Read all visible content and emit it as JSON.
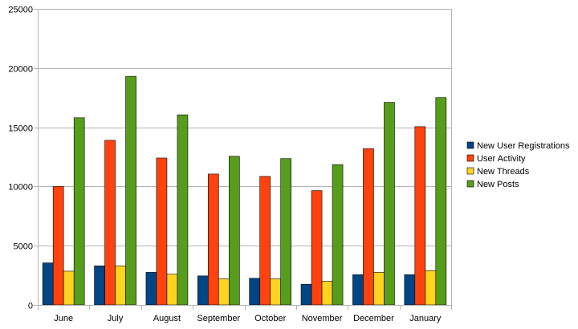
{
  "chart_data": {
    "type": "bar",
    "title": "",
    "xlabel": "",
    "ylabel": "",
    "categories": [
      "June",
      "July",
      "August",
      "September",
      "October",
      "November",
      "December",
      "January"
    ],
    "ylim": [
      0,
      25000
    ],
    "yticks": [
      0,
      5000,
      10000,
      15000,
      20000,
      25000
    ],
    "grid": true,
    "legend_position": "right",
    "series": [
      {
        "name": "New User Registrations",
        "color": "#004586",
        "values": [
          3550,
          3300,
          2750,
          2450,
          2250,
          1750,
          2550,
          2550
        ]
      },
      {
        "name": "User Activity",
        "color": "#ff420e",
        "values": [
          10000,
          13900,
          12400,
          11050,
          10850,
          9650,
          13200,
          15050
        ]
      },
      {
        "name": "New Threads",
        "color": "#ffd320",
        "values": [
          2850,
          3300,
          2600,
          2200,
          2200,
          2000,
          2750,
          2900
        ]
      },
      {
        "name": "New Posts",
        "color": "#579d1c",
        "values": [
          15800,
          19300,
          16050,
          12550,
          12350,
          11850,
          17100,
          17500
        ]
      }
    ]
  }
}
